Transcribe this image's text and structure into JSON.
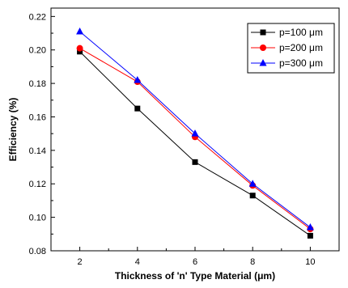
{
  "chart_data": {
    "type": "line",
    "xlabel": "Thickness of 'n' Type Material (μm)",
    "ylabel": "Efficiency (%)",
    "x": [
      2,
      4,
      6,
      8,
      10
    ],
    "xlim": [
      1,
      11
    ],
    "ylim": [
      0.08,
      0.225
    ],
    "x_ticks": [
      "2",
      "4",
      "6",
      "8",
      "10"
    ],
    "y_ticks": [
      "0.08",
      "0.10",
      "0.12",
      "0.14",
      "0.16",
      "0.18",
      "0.20",
      "0.22"
    ],
    "grid": false,
    "legend_position": "top-right",
    "series": [
      {
        "name": "p=100 μm",
        "color": "#000000",
        "marker": "square",
        "values": [
          0.199,
          0.165,
          0.133,
          0.113,
          0.089
        ]
      },
      {
        "name": "p=200 μm",
        "color": "#ff0000",
        "marker": "circle",
        "values": [
          0.201,
          0.181,
          0.148,
          0.119,
          0.093
        ]
      },
      {
        "name": "p=300 μm",
        "color": "#0000ff",
        "marker": "triangle",
        "values": [
          0.211,
          0.182,
          0.15,
          0.12,
          0.094
        ]
      }
    ]
  }
}
